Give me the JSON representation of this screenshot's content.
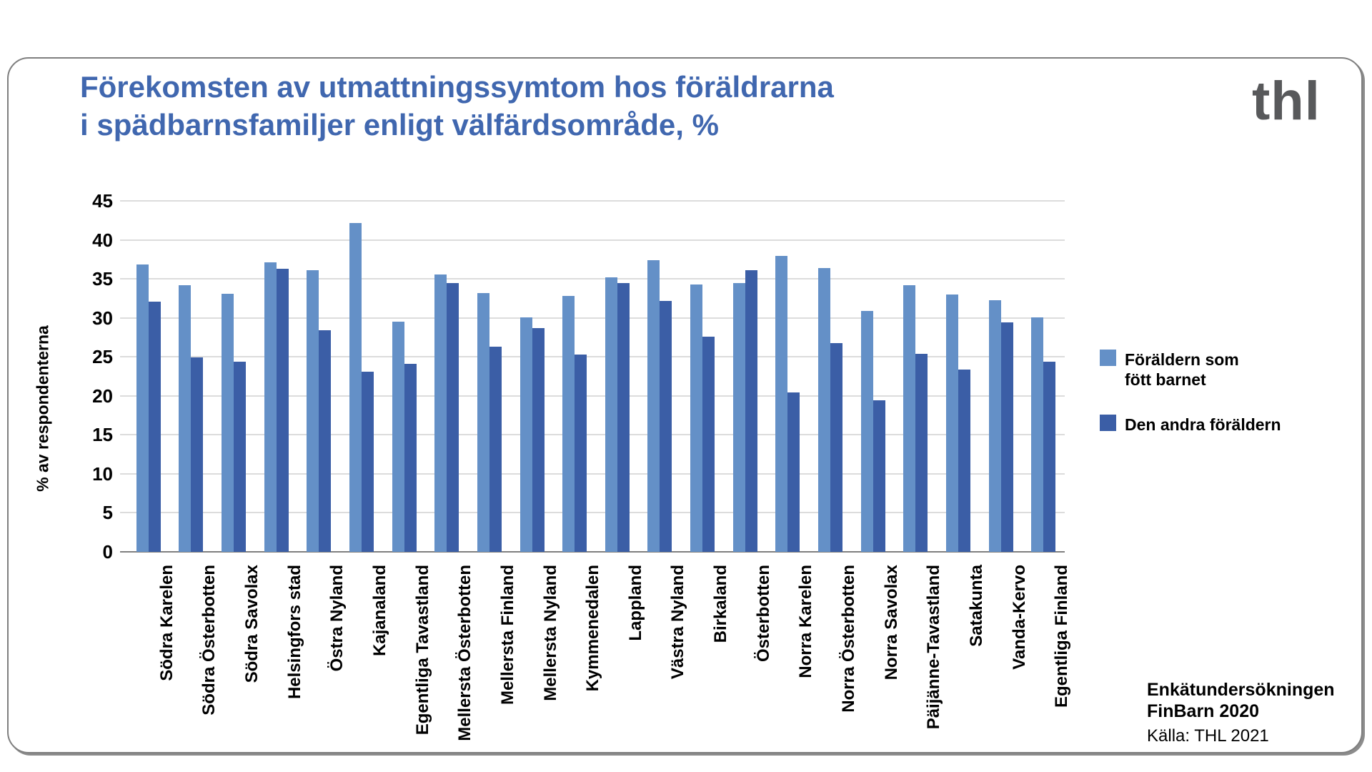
{
  "header": {
    "title_line1": "Förekomsten av utmattningssymtom hos föräldrarna",
    "title_line2": "i spädbarnsfamiljer enligt välfärdsområde, %",
    "title_color": "#4067af",
    "logo_text": "thl",
    "logo_color": "#58595b"
  },
  "chart_data": {
    "type": "bar",
    "title": "Förekomsten av utmattningssymtom hos föräldrarna i spädbarnsfamiljer enligt välfärdsområde, %",
    "xlabel": "",
    "ylabel": "% av respondenterna",
    "ylim": [
      0,
      45
    ],
    "ytick_step": 5,
    "grid": true,
    "legend_position": "right",
    "categories": [
      "Södra Karelen",
      "Södra Österbotten",
      "Södra Savolax",
      "Helsingfors stad",
      "Östra Nyland",
      "Kajanaland",
      "Egentliga Tavastland",
      "Mellersta Österbotten",
      "Mellersta Finland",
      "Mellersta Nyland",
      "Kymmenedalen",
      "Lappland",
      "Västra Nyland",
      "Birkaland",
      "Österbotten",
      "Norra Karelen",
      "Norra Österbotten",
      "Norra Savolax",
      "Päijänne-Tavastland",
      "Satakunta",
      "Vanda-Kervo",
      "Egentliga Finland"
    ],
    "series": [
      {
        "name": "Föräldern som fött barnet",
        "color": "#6490c7",
        "values": [
          36.8,
          34.2,
          33.1,
          37.1,
          36.1,
          42.2,
          29.5,
          35.6,
          33.2,
          30.1,
          32.8,
          35.2,
          37.4,
          34.3,
          34.5,
          37.9,
          36.4,
          30.9,
          34.2,
          33.0,
          32.3,
          30.1
        ]
      },
      {
        "name": "Den andra föräldern",
        "color": "#3b5ea6",
        "values": [
          32.1,
          24.9,
          24.4,
          36.3,
          28.4,
          23.1,
          24.1,
          34.5,
          26.3,
          28.7,
          25.3,
          34.5,
          32.2,
          27.6,
          36.1,
          20.4,
          26.8,
          19.4,
          25.4,
          23.4,
          29.4,
          24.4
        ]
      }
    ]
  },
  "legend": {
    "items": [
      {
        "lines": [
          "Föräldern som",
          "fött barnet"
        ],
        "color": "#6490c7"
      },
      {
        "lines": [
          "Den andra föräldern"
        ],
        "color": "#3b5ea6"
      }
    ]
  },
  "footer": {
    "study_line1": "Enkätundersökningen",
    "study_line2": "FinBarn 2020",
    "source": "Källa: THL 2021"
  }
}
